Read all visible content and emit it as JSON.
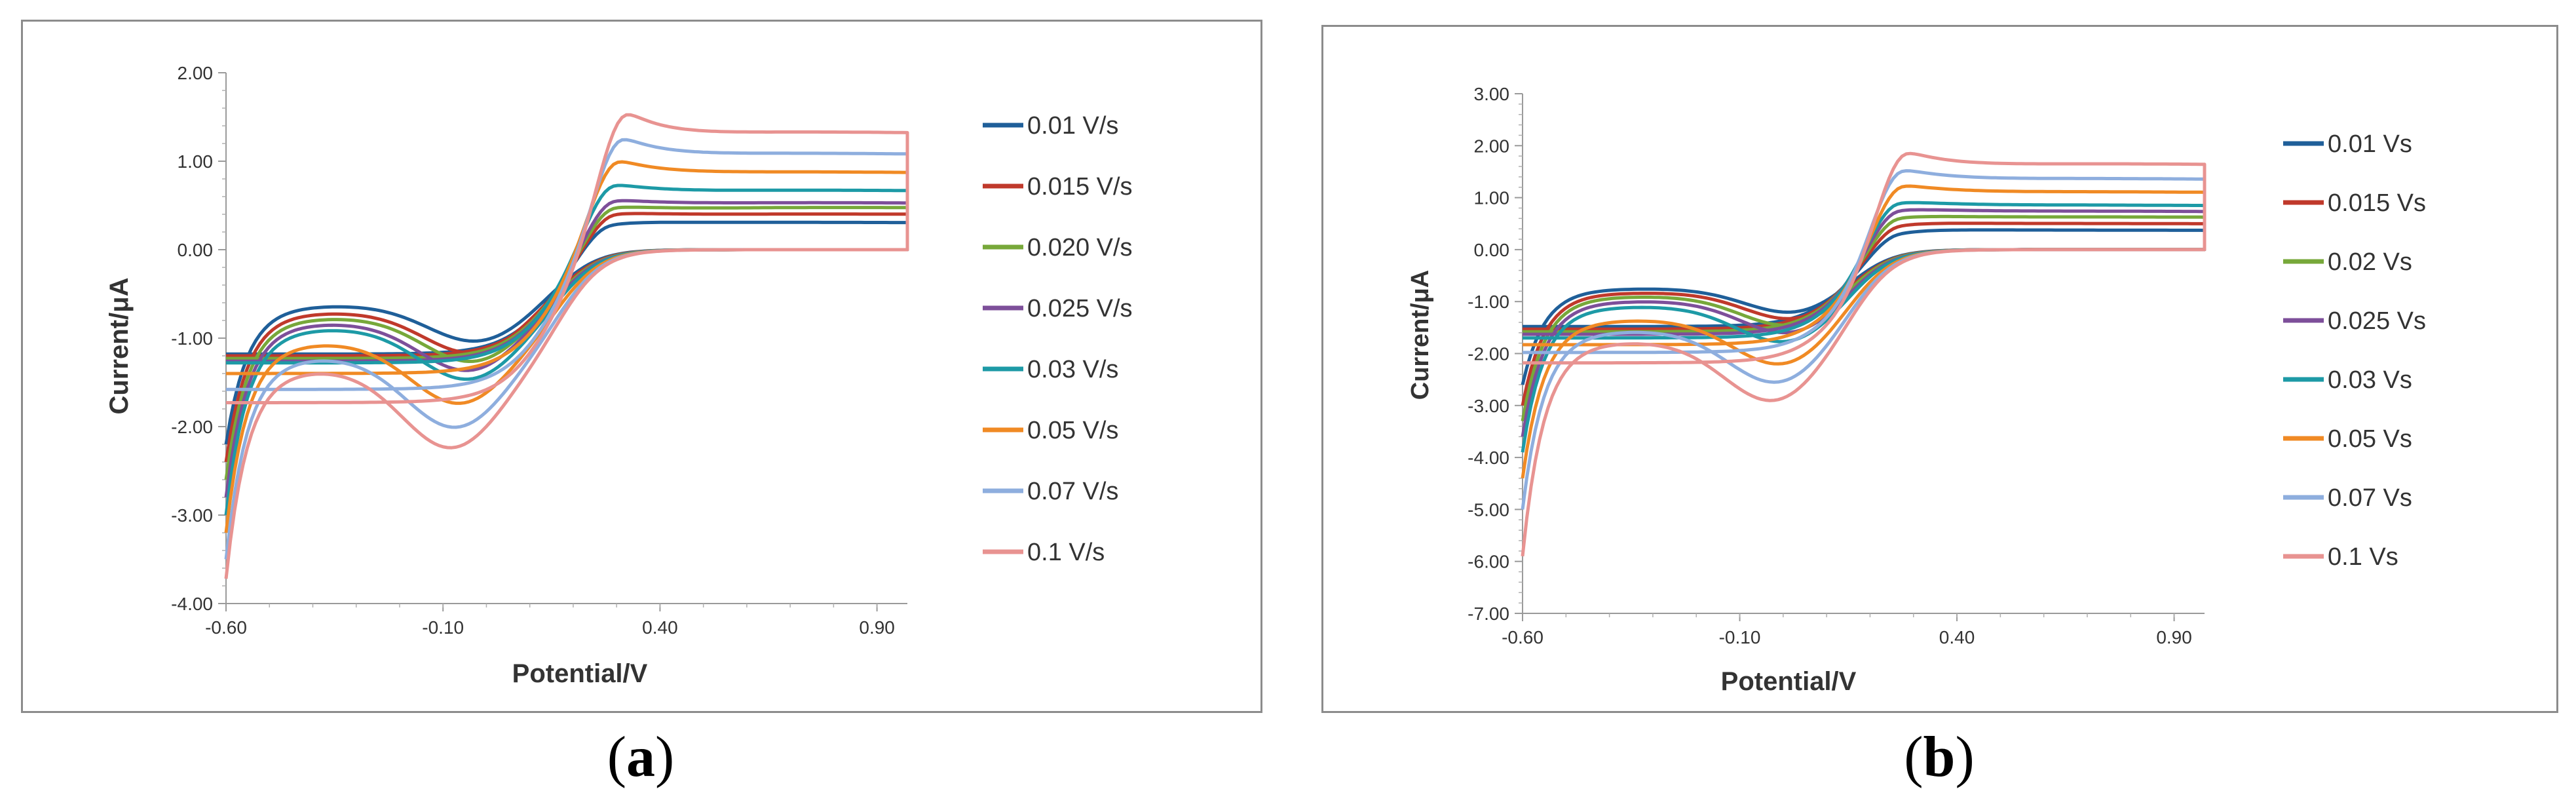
{
  "charts": [
    {
      "id": "a",
      "caption": "a",
      "xlabel": "Potential/V",
      "ylabel": "Current/μA",
      "xticks": [
        "-0.60",
        "-0.10",
        "0.40",
        "0.90"
      ],
      "yticks": [
        "2.00",
        "1.00",
        "0.00",
        "-1.00",
        "-2.00",
        "-3.00",
        "-4.00"
      ],
      "legend": [
        "0.01 V/s",
        "0.015 V/s",
        "0.020 V/s",
        "0.025 V/s",
        "0.03 V/s",
        "0.05 V/s",
        "0.07 V/s",
        "0.1 V/s"
      ]
    },
    {
      "id": "b",
      "caption": "b",
      "xlabel": "Potential/V",
      "ylabel": "Current/μA",
      "xticks": [
        "-0.60",
        "-0.10",
        "0.40",
        "0.90"
      ],
      "yticks": [
        "3.00",
        "2.00",
        "1.00",
        "0.00",
        "-1.00",
        "-2.00",
        "-3.00",
        "-4.00",
        "-5.00",
        "-6.00",
        "-7.00"
      ],
      "legend": [
        "0.01 Vs",
        "0.015 Vs",
        "0.02 Vs",
        "0.025 Vs",
        "0.03 Vs",
        "0.05 Vs",
        "0.07 Vs",
        "0.1 Vs"
      ]
    }
  ],
  "chart_data": [
    {
      "type": "line",
      "title": "",
      "xlabel": "Potential/V",
      "ylabel": "Current/μA",
      "xlim": [
        -0.6,
        0.97
      ],
      "ylim": [
        -4,
        2
      ],
      "legend_position": "right",
      "series": [
        {
          "name": "0.01 V/s",
          "color": "#1f5f99",
          "ipa": 0.35,
          "ipc": -1.05,
          "start": -1.2,
          "end": 0.1,
          "lowEnd": -2.2,
          "epa": 0.28,
          "epc": -0.02
        },
        {
          "name": "0.015 V/s",
          "color": "#c0392b",
          "ipa": 0.45,
          "ipc": -1.18,
          "start": -1.22,
          "end": 0.15,
          "lowEnd": -2.4,
          "epa": 0.29,
          "epc": -0.03
        },
        {
          "name": "0.020 V/s",
          "color": "#77a83a",
          "ipa": 0.52,
          "ipc": -1.28,
          "start": -1.25,
          "end": 0.2,
          "lowEnd": -2.6,
          "epa": 0.29,
          "epc": -0.03
        },
        {
          "name": "0.025 V/s",
          "color": "#7d4f9a",
          "ipa": 0.6,
          "ipc": -1.38,
          "start": -1.28,
          "end": 0.2,
          "lowEnd": -2.8,
          "epa": 0.29,
          "epc": -0.04
        },
        {
          "name": "0.03 V/s",
          "color": "#1d9aa6",
          "ipa": 0.77,
          "ipc": -1.48,
          "start": -1.3,
          "end": 0.25,
          "lowEnd": -3.0,
          "epa": 0.29,
          "epc": -0.04
        },
        {
          "name": "0.05 V/s",
          "color": "#f08a24",
          "ipa": 1.02,
          "ipc": -1.75,
          "start": -1.42,
          "end": 0.32,
          "lowEnd": -3.2,
          "epa": 0.3,
          "epc": -0.06
        },
        {
          "name": "0.07 V/s",
          "color": "#8eaede",
          "ipa": 1.25,
          "ipc": -2.02,
          "start": -1.6,
          "end": 0.42,
          "lowEnd": -3.5,
          "epa": 0.31,
          "epc": -0.07
        },
        {
          "name": "0.1 V/s",
          "color": "#e89391",
          "ipa": 1.5,
          "ipc": -2.25,
          "start": -1.75,
          "end": 0.55,
          "lowEnd": -3.72,
          "epa": 0.32,
          "epc": -0.08
        }
      ]
    },
    {
      "type": "line",
      "title": "",
      "xlabel": "Potential/V",
      "ylabel": "Current/μA",
      "xlim": [
        -0.6,
        0.97
      ],
      "ylim": [
        -7,
        3
      ],
      "legend_position": "right",
      "series": [
        {
          "name": "0.01 Vs",
          "color": "#1f5f99",
          "ipa": 0.45,
          "ipc": -1.25,
          "start": -1.5,
          "end": 0.1,
          "lowEnd": -2.6,
          "epa": 0.26,
          "epc": 0.03
        },
        {
          "name": "0.015 Vs",
          "color": "#c0392b",
          "ipa": 0.6,
          "ipc": -1.38,
          "start": -1.55,
          "end": 0.15,
          "lowEnd": -3.0,
          "epa": 0.26,
          "epc": 0.03
        },
        {
          "name": "0.02 Vs",
          "color": "#77a83a",
          "ipa": 0.75,
          "ipc": -1.5,
          "start": -1.6,
          "end": 0.2,
          "lowEnd": -3.3,
          "epa": 0.26,
          "epc": 0.02
        },
        {
          "name": "0.025 Vs",
          "color": "#7d4f9a",
          "ipa": 0.9,
          "ipc": -1.65,
          "start": -1.65,
          "end": 0.22,
          "lowEnd": -3.6,
          "epa": 0.26,
          "epc": 0.02
        },
        {
          "name": "0.03 Vs",
          "color": "#1d9aa6",
          "ipa": 1.05,
          "ipc": -1.82,
          "start": -1.72,
          "end": 0.25,
          "lowEnd": -3.9,
          "epa": 0.26,
          "epc": 0.01
        },
        {
          "name": "0.05 Vs",
          "color": "#f08a24",
          "ipa": 1.35,
          "ipc": -2.25,
          "start": -1.85,
          "end": 0.35,
          "lowEnd": -4.4,
          "epa": 0.27,
          "epc": 0.0
        },
        {
          "name": "0.07 Vs",
          "color": "#8eaede",
          "ipa": 1.65,
          "ipc": -2.6,
          "start": -2.0,
          "end": 0.45,
          "lowEnd": -5.0,
          "epa": 0.27,
          "epc": -0.01
        },
        {
          "name": "0.1 Vs",
          "color": "#e89391",
          "ipa": 1.95,
          "ipc": -2.95,
          "start": -2.2,
          "end": 0.6,
          "lowEnd": -5.9,
          "epa": 0.28,
          "epc": -0.02
        }
      ]
    }
  ]
}
